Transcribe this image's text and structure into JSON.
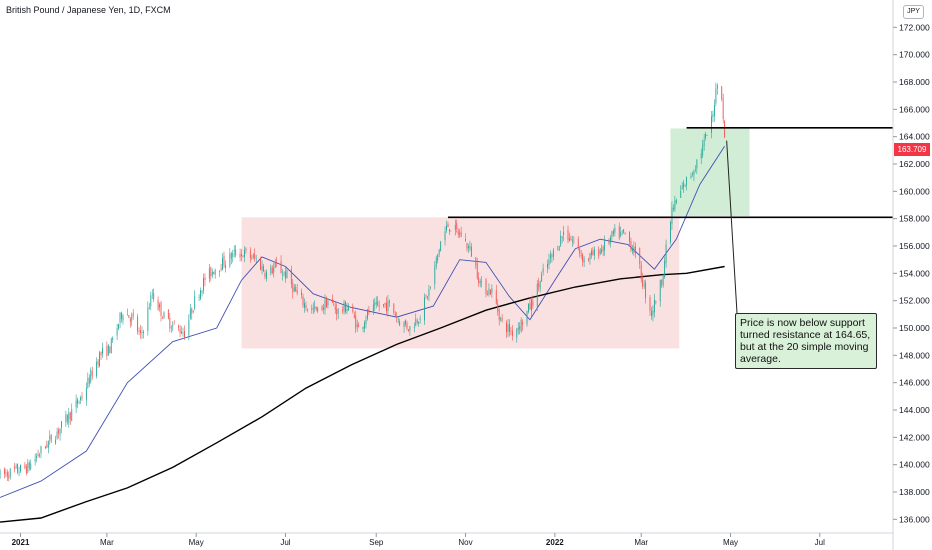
{
  "title": "British Pound / Japanese Yen, 1D, FXCM",
  "currency_badge": "JPY",
  "last_price_label": "163.709",
  "annotation": "Price is now below support turned resistance at 164.65, but at the 20 simple moving average.",
  "colors": {
    "up": "#26a69a",
    "down": "#ef5350",
    "sma20": "#3f51b5",
    "sma200": "#000000",
    "range_box": "#f8d7d7",
    "breakout_box": "#cdebd0",
    "price_tag": "#f23645",
    "note_bg": "#d9f0d9"
  },
  "chart_data": {
    "type": "candlestick",
    "title": "British Pound / Japanese Yen, 1D, FXCM",
    "y_axis": {
      "currency": "JPY",
      "range": [
        135.0,
        174.0
      ],
      "ticks": [
        "136.000",
        "138.000",
        "140.000",
        "142.000",
        "144.000",
        "146.000",
        "148.000",
        "150.000",
        "152.000",
        "154.000",
        "156.000",
        "158.000",
        "160.000",
        "162.000",
        "164.000",
        "166.000",
        "168.000",
        "170.000",
        "172.000"
      ]
    },
    "x_axis": {
      "range": [
        "2020-12-18",
        "2022-08-20"
      ],
      "ticks": [
        {
          "date": "2021-01-01",
          "label": "2021"
        },
        {
          "date": "2021-03-01",
          "label": "Mar"
        },
        {
          "date": "2021-05-01",
          "label": "May"
        },
        {
          "date": "2021-07-01",
          "label": "Jul"
        },
        {
          "date": "2021-09-01",
          "label": "Sep"
        },
        {
          "date": "2021-11-01",
          "label": "Nov"
        },
        {
          "date": "2022-01-01",
          "label": "2022"
        },
        {
          "date": "2022-03-01",
          "label": "Mar"
        },
        {
          "date": "2022-05-01",
          "label": "May"
        },
        {
          "date": "2022-07-01",
          "label": "Jul"
        }
      ]
    },
    "price_path": [
      [
        "2020-12-18",
        139.2
      ],
      [
        "2021-01-06",
        139.8
      ],
      [
        "2021-01-15",
        141.0
      ],
      [
        "2021-01-29",
        142.8
      ],
      [
        "2021-02-12",
        145.0
      ],
      [
        "2021-02-24",
        148.0
      ],
      [
        "2021-03-03",
        148.5
      ],
      [
        "2021-03-12",
        151.3
      ],
      [
        "2021-03-19",
        150.6
      ],
      [
        "2021-03-24",
        149.3
      ],
      [
        "2021-04-01",
        152.5
      ],
      [
        "2021-04-09",
        150.8
      ],
      [
        "2021-04-16",
        150.1
      ],
      [
        "2021-04-23",
        149.7
      ],
      [
        "2021-04-30",
        152.0
      ],
      [
        "2021-05-07",
        153.6
      ],
      [
        "2021-05-14",
        154.4
      ],
      [
        "2021-05-21",
        154.9
      ],
      [
        "2021-05-28",
        155.5
      ],
      [
        "2021-06-04",
        155.4
      ],
      [
        "2021-06-11",
        155.0
      ],
      [
        "2021-06-18",
        154.0
      ],
      [
        "2021-06-25",
        154.5
      ],
      [
        "2021-07-02",
        153.8
      ],
      [
        "2021-07-09",
        152.4
      ],
      [
        "2021-07-16",
        151.5
      ],
      [
        "2021-07-23",
        151.2
      ],
      [
        "2021-07-30",
        152.0
      ],
      [
        "2021-08-06",
        151.2
      ],
      [
        "2021-08-13",
        151.6
      ],
      [
        "2021-08-20",
        149.9
      ],
      [
        "2021-08-27",
        151.2
      ],
      [
        "2021-09-03",
        151.6
      ],
      [
        "2021-09-10",
        151.7
      ],
      [
        "2021-09-17",
        150.5
      ],
      [
        "2021-09-24",
        150.0
      ],
      [
        "2021-10-01",
        151.0
      ],
      [
        "2021-10-08",
        153.0
      ],
      [
        "2021-10-15",
        156.3
      ],
      [
        "2021-10-20",
        157.5
      ],
      [
        "2021-10-29",
        156.8
      ],
      [
        "2021-11-05",
        155.5
      ],
      [
        "2021-11-12",
        153.0
      ],
      [
        "2021-11-19",
        152.7
      ],
      [
        "2021-11-26",
        150.3
      ],
      [
        "2021-12-03",
        149.7
      ],
      [
        "2021-12-10",
        150.5
      ],
      [
        "2021-12-17",
        152.0
      ],
      [
        "2021-12-24",
        154.0
      ],
      [
        "2021-12-31",
        155.5
      ],
      [
        "2022-01-07",
        157.0
      ],
      [
        "2022-01-14",
        156.3
      ],
      [
        "2022-01-21",
        155.0
      ],
      [
        "2022-01-28",
        155.4
      ],
      [
        "2022-02-04",
        156.0
      ],
      [
        "2022-02-11",
        156.9
      ],
      [
        "2022-02-18",
        156.8
      ],
      [
        "2022-02-25",
        155.6
      ],
      [
        "2022-03-04",
        152.5
      ],
      [
        "2022-03-08",
        151.1
      ],
      [
        "2022-03-15",
        153.5
      ],
      [
        "2022-03-22",
        158.6
      ],
      [
        "2022-03-29",
        160.2
      ],
      [
        "2022-04-05",
        161.5
      ],
      [
        "2022-04-12",
        163.2
      ],
      [
        "2022-04-19",
        165.5
      ],
      [
        "2022-04-21",
        167.8
      ],
      [
        "2022-04-25",
        167.2
      ],
      [
        "2022-04-27",
        163.71
      ]
    ],
    "series": [
      {
        "type": "line",
        "points": [
          [
            "2020-12-18",
            137.6
          ],
          [
            "2021-01-15",
            138.8
          ],
          [
            "2021-02-15",
            141.0
          ],
          [
            "2021-03-15",
            146.0
          ],
          [
            "2021-04-15",
            149.0
          ],
          [
            "2021-05-15",
            150.0
          ],
          [
            "2021-06-01",
            153.5
          ],
          [
            "2021-06-15",
            155.2
          ],
          [
            "2021-07-01",
            154.5
          ],
          [
            "2021-07-20",
            152.5
          ],
          [
            "2021-08-15",
            151.5
          ],
          [
            "2021-09-15",
            150.8
          ],
          [
            "2021-10-10",
            151.6
          ],
          [
            "2021-10-28",
            155.0
          ],
          [
            "2021-11-15",
            154.8
          ],
          [
            "2021-12-01",
            152.3
          ],
          [
            "2021-12-15",
            150.6
          ],
          [
            "2022-01-01",
            153.5
          ],
          [
            "2022-01-15",
            155.8
          ],
          [
            "2022-02-01",
            156.5
          ],
          [
            "2022-02-20",
            156.1
          ],
          [
            "2022-03-10",
            154.3
          ],
          [
            "2022-03-25",
            156.5
          ],
          [
            "2022-04-10",
            160.5
          ],
          [
            "2022-04-27",
            163.3
          ]
        ]
      },
      {
        "type": "line",
        "points": [
          [
            "2020-12-18",
            135.8
          ],
          [
            "2021-01-15",
            136.1
          ],
          [
            "2021-02-15",
            137.3
          ],
          [
            "2021-03-15",
            138.3
          ],
          [
            "2021-04-15",
            139.8
          ],
          [
            "2021-05-15",
            141.6
          ],
          [
            "2021-06-15",
            143.5
          ],
          [
            "2021-07-15",
            145.6
          ],
          [
            "2021-08-15",
            147.3
          ],
          [
            "2021-09-15",
            148.8
          ],
          [
            "2021-10-15",
            150.0
          ],
          [
            "2021-11-15",
            151.3
          ],
          [
            "2021-12-15",
            152.2
          ],
          [
            "2022-01-15",
            153.0
          ],
          [
            "2022-02-15",
            153.6
          ],
          [
            "2022-03-15",
            153.9
          ],
          [
            "2022-04-01",
            154.0
          ],
          [
            "2022-04-27",
            154.5
          ]
        ]
      }
    ],
    "zones": [
      {
        "from": "2021-06-01",
        "to": "2022-03-27",
        "low": 148.5,
        "high": 158.1
      },
      {
        "from": "2022-03-21",
        "to": "2022-05-14",
        "low": 158.2,
        "high": 164.6
      }
    ],
    "levels": [
      {
        "price": 158.1,
        "from": "2021-10-20"
      },
      {
        "price": 164.65,
        "from": "2022-04-01"
      }
    ]
  }
}
